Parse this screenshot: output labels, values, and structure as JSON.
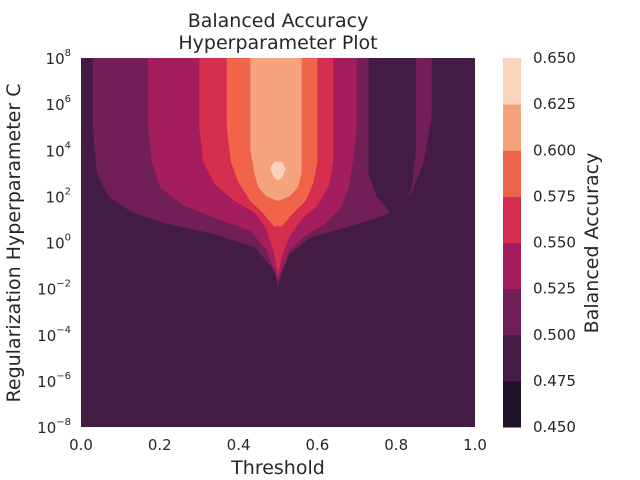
{
  "chart_data": {
    "type": "contour",
    "title_lines": [
      "Balanced Accuracy",
      "Hyperparameter Plot"
    ],
    "xlabel": "Threshold",
    "ylabel": "Regularization Hyperparameter C",
    "xlim": [
      0.0,
      1.0
    ],
    "ylim_log10": [
      -8,
      8
    ],
    "y_scale": "log",
    "x_ticks": [
      "0.0",
      "0.2",
      "0.4",
      "0.6",
      "0.8",
      "1.0"
    ],
    "y_ticks_base": "10",
    "y_ticks_exponents": [
      "−8",
      "−6",
      "−4",
      "−2",
      "0",
      "2",
      "4",
      "6",
      "8"
    ],
    "grid": false,
    "colorbar": {
      "label": "Balanced Accuracy",
      "levels": [
        0.45,
        0.475,
        0.5,
        0.525,
        0.55,
        0.575,
        0.6,
        0.625,
        0.65
      ],
      "tick_labels": [
        "0.450",
        "0.475",
        "0.500",
        "0.525",
        "0.550",
        "0.575",
        "0.600",
        "0.625",
        "0.650"
      ],
      "colors": [
        "#1d1227",
        "#431c43",
        "#721f58",
        "#a41d5c",
        "#d52e4f",
        "#f0644a",
        "#f6a27d",
        "#fad3bd"
      ]
    },
    "regions": [
      {
        "level_index": 2,
        "description_level": "0.500-0.525",
        "left": [
          [
            0.03,
            8
          ],
          [
            0.03,
            5
          ],
          [
            0.04,
            3
          ],
          [
            0.07,
            2
          ],
          [
            0.13,
            1.3
          ],
          [
            0.22,
            0.8
          ],
          [
            0.33,
            0.4
          ],
          [
            0.44,
            -0.2
          ],
          [
            0.49,
            -1.2
          ],
          [
            0.5,
            -1.9
          ]
        ],
        "right": [
          [
            0.51,
            -1.3
          ],
          [
            0.53,
            -0.5
          ],
          [
            0.58,
            0.2
          ],
          [
            0.66,
            0.6
          ],
          [
            0.74,
            1.0
          ],
          [
            0.8,
            1.4
          ],
          [
            0.84,
            2.2
          ],
          [
            0.87,
            3.5
          ],
          [
            0.89,
            5.5
          ],
          [
            0.89,
            8
          ]
        ]
      },
      {
        "level_index": 1,
        "description_level": "0.475-0.500",
        "left": [
          [
            0.73,
            8
          ],
          [
            0.73,
            5
          ],
          [
            0.73,
            3
          ],
          [
            0.75,
            2
          ],
          [
            0.78,
            1.4
          ],
          [
            0.8,
            1.0
          ]
        ],
        "right": [
          [
            0.8,
            1.0
          ],
          [
            0.82,
            1.6
          ],
          [
            0.84,
            2.4
          ],
          [
            0.85,
            4
          ],
          [
            0.85,
            8
          ]
        ]
      },
      {
        "level_index": 3,
        "description_level": "0.525-0.550",
        "left": [
          [
            0.17,
            8
          ],
          [
            0.17,
            5
          ],
          [
            0.18,
            3.5
          ],
          [
            0.2,
            2.4
          ],
          [
            0.26,
            1.6
          ],
          [
            0.35,
            1.0
          ],
          [
            0.43,
            0.5
          ],
          [
            0.47,
            -0.3
          ],
          [
            0.49,
            -1.2
          ],
          [
            0.5,
            -1.6
          ]
        ],
        "right": [
          [
            0.51,
            -1.2
          ],
          [
            0.53,
            -0.3
          ],
          [
            0.57,
            0.3
          ],
          [
            0.62,
            0.8
          ],
          [
            0.66,
            1.5
          ],
          [
            0.68,
            2.4
          ],
          [
            0.69,
            3.5
          ],
          [
            0.7,
            5
          ],
          [
            0.7,
            8
          ]
        ]
      },
      {
        "level_index": 4,
        "description_level": "0.550-0.575",
        "left": [
          [
            0.3,
            8
          ],
          [
            0.3,
            5
          ],
          [
            0.31,
            3.5
          ],
          [
            0.34,
            2.5
          ],
          [
            0.39,
            1.8
          ],
          [
            0.44,
            1.3
          ],
          [
            0.47,
            0.6
          ],
          [
            0.49,
            -0.5
          ],
          [
            0.5,
            -1.4
          ]
        ],
        "right": [
          [
            0.51,
            -0.6
          ],
          [
            0.53,
            0.3
          ],
          [
            0.56,
            1.0
          ],
          [
            0.6,
            1.6
          ],
          [
            0.63,
            2.5
          ],
          [
            0.64,
            3.5
          ],
          [
            0.64,
            5
          ],
          [
            0.64,
            8
          ]
        ]
      },
      {
        "level_index": 5,
        "description_level": "0.575-0.600",
        "left": [
          [
            0.37,
            8
          ],
          [
            0.37,
            5
          ],
          [
            0.38,
            3.5
          ],
          [
            0.4,
            2.6
          ],
          [
            0.43,
            1.8
          ],
          [
            0.46,
            1.3
          ],
          [
            0.49,
            0.7
          ]
        ],
        "right": [
          [
            0.51,
            0.7
          ],
          [
            0.54,
            1.3
          ],
          [
            0.57,
            1.8
          ],
          [
            0.59,
            2.6
          ],
          [
            0.6,
            3.5
          ],
          [
            0.6,
            5
          ],
          [
            0.6,
            8
          ]
        ]
      },
      {
        "level_index": 6,
        "description_level": "0.600-0.625",
        "left": [
          [
            0.43,
            8
          ],
          [
            0.43,
            6
          ],
          [
            0.43,
            4
          ],
          [
            0.44,
            3
          ],
          [
            0.45,
            2.4
          ],
          [
            0.47,
            2.0
          ],
          [
            0.5,
            1.8
          ]
        ],
        "right": [
          [
            0.5,
            1.8
          ],
          [
            0.53,
            2.0
          ],
          [
            0.55,
            2.4
          ],
          [
            0.56,
            3
          ],
          [
            0.56,
            4
          ],
          [
            0.56,
            6
          ],
          [
            0.56,
            8
          ]
        ]
      },
      {
        "level_index": 7,
        "description_level": "0.625-0.650",
        "left": [
          [
            0.48,
            3.2
          ],
          [
            0.49,
            2.8
          ],
          [
            0.5,
            2.7
          ]
        ],
        "right": [
          [
            0.51,
            2.8
          ],
          [
            0.52,
            3.2
          ],
          [
            0.51,
            3.5
          ],
          [
            0.49,
            3.5
          ]
        ]
      }
    ]
  }
}
